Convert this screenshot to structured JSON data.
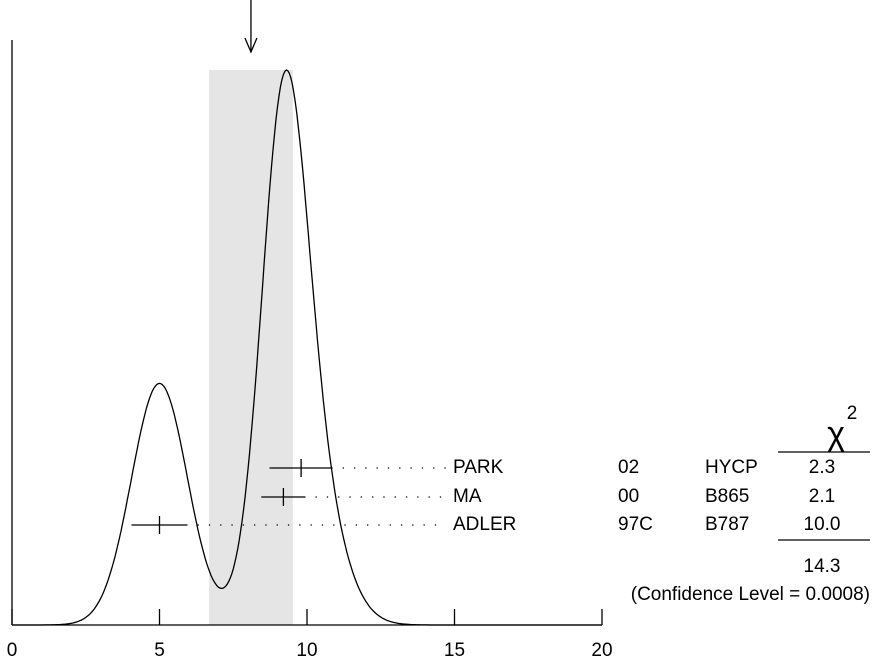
{
  "chart_data": {
    "type": "ideogram",
    "xlim": [
      0,
      20
    ],
    "xticks": [
      0,
      5,
      10,
      15,
      20
    ],
    "mean": 8.1,
    "mean_error": 1.42,
    "measurements": [
      {
        "name": "PARK",
        "value": 9.8,
        "error": 1.07,
        "year": "02",
        "method": "HYCP",
        "chi2": "2.3"
      },
      {
        "name": "MA",
        "value": 9.2,
        "error": 0.75,
        "year": "00",
        "method": "B865",
        "chi2": "2.1"
      },
      {
        "name": "ADLER",
        "value": 5.0,
        "error": 0.95,
        "year": "97C",
        "method": "B787",
        "chi2": "10.0"
      }
    ],
    "chi2_symbol": "χ",
    "chi2_power": "2",
    "chi2_total": "14.3",
    "confidence_level": "(Confidence Level = 0.0008)"
  }
}
